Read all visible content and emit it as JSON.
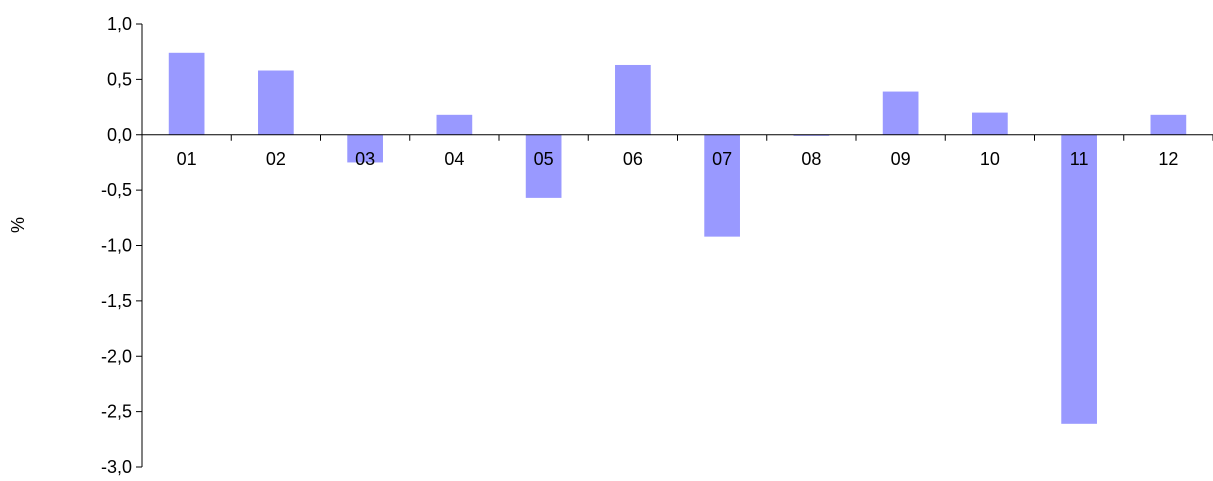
{
  "chart_data": {
    "type": "bar",
    "categories": [
      "01",
      "02",
      "03",
      "04",
      "05",
      "06",
      "07",
      "08",
      "09",
      "10",
      "11",
      "12"
    ],
    "series": [
      {
        "values": [
          0.74,
          0.58,
          -0.25,
          0.18,
          -0.57,
          0.63,
          -0.92,
          -0.01,
          0.39,
          0.2,
          -2.61,
          0.18
        ]
      }
    ],
    "ylabel": "%",
    "ylim": [
      -3.0,
      1.0
    ],
    "yticks": [
      1.0,
      0.5,
      0.0,
      -0.5,
      -1.0,
      -1.5,
      -2.0,
      -2.5,
      -3.0
    ],
    "ytick_labels": [
      "1,0",
      "0,5",
      "0,0",
      "-0,5",
      "-1,0",
      "-1,5",
      "-2,0",
      "-2,5",
      "-3,0"
    ],
    "bar_color": "#9999ff",
    "grid": false,
    "legend": "none"
  }
}
